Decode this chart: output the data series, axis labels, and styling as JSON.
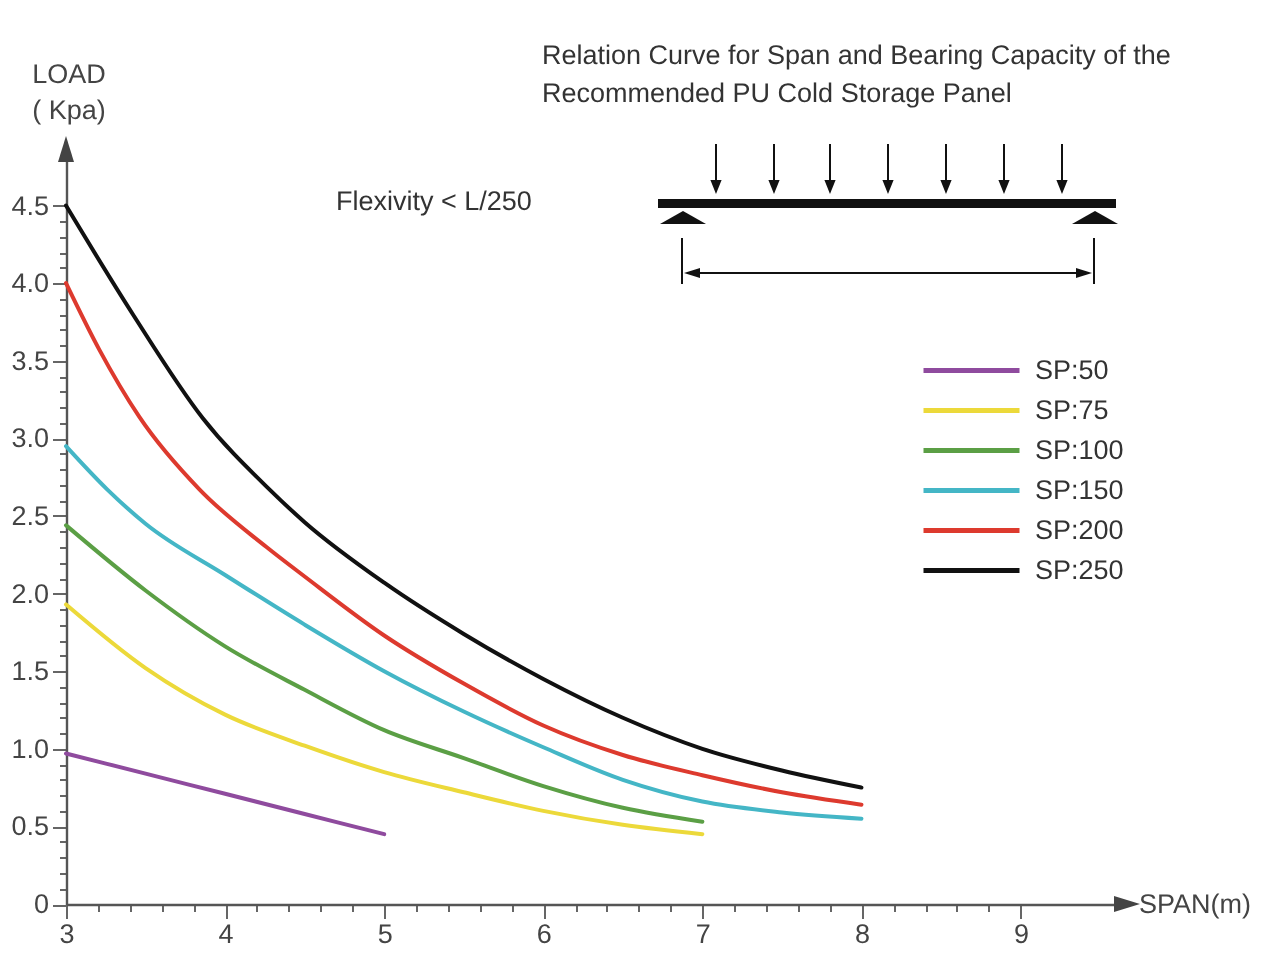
{
  "chart_data": {
    "type": "line",
    "title": "Relation Curve for Span and Bearing Capacity of the Recommended PU Cold Storage Panel",
    "xlabel": "SPAN(m)",
    "ylabel": "LOAD\n( Kpa)",
    "annotations": [
      "Flexivity < L/250"
    ],
    "xlim": [
      3,
      9.6
    ],
    "ylim": [
      0,
      4.8
    ],
    "xticks": [
      3,
      {
        "value": 3.2,
        "label": null
      },
      {
        "value": 3.4,
        "label": null
      },
      {
        "value": 3.6,
        "label": null
      },
      {
        "value": 3.8,
        "label": null
      },
      4,
      {
        "value": 4.2,
        "label": null
      },
      {
        "value": 4.4,
        "label": null
      },
      {
        "value": 4.6,
        "label": null
      },
      {
        "value": 4.8,
        "label": null
      },
      5,
      {
        "value": 5.2,
        "label": null
      },
      {
        "value": 5.4,
        "label": null
      },
      {
        "value": 5.6,
        "label": null
      },
      {
        "value": 5.8,
        "label": null
      },
      6,
      {
        "value": 6.2,
        "label": null
      },
      {
        "value": 6.4,
        "label": null
      },
      {
        "value": 6.6,
        "label": null
      },
      {
        "value": 6.8,
        "label": null
      },
      7,
      {
        "value": 7.2,
        "label": null
      },
      {
        "value": 7.4,
        "label": null
      },
      {
        "value": 7.6,
        "label": null
      },
      {
        "value": 7.8,
        "label": null
      },
      8,
      {
        "value": 8.2,
        "label": null
      },
      {
        "value": 8.4,
        "label": null
      },
      {
        "value": 8.6,
        "label": null
      },
      {
        "value": 8.8,
        "label": null
      },
      9
    ],
    "yticks": [
      0,
      {
        "value": 0.1,
        "label": null
      },
      {
        "value": 0.2,
        "label": null
      },
      {
        "value": 0.3,
        "label": null
      },
      {
        "value": 0.4,
        "label": null
      },
      0.5,
      {
        "value": 0.6,
        "label": null
      },
      {
        "value": 0.7,
        "label": null
      },
      {
        "value": 0.8,
        "label": null
      },
      {
        "value": 0.9,
        "label": null
      },
      {
        "value": 1,
        "label": "1.0"
      },
      {
        "value": 1.1,
        "label": null
      },
      {
        "value": 1.2,
        "label": null
      },
      {
        "value": 1.3,
        "label": null
      },
      {
        "value": 1.4,
        "label": null
      },
      1.5,
      {
        "value": 1.6,
        "label": null
      },
      {
        "value": 1.7,
        "label": null
      },
      {
        "value": 1.8,
        "label": null
      },
      {
        "value": 1.9,
        "label": null
      },
      {
        "value": 2,
        "label": "2.0"
      },
      {
        "value": 2.1,
        "label": null
      },
      {
        "value": 2.2,
        "label": null
      },
      {
        "value": 2.3,
        "label": null
      },
      {
        "value": 2.4,
        "label": null
      },
      2.5,
      {
        "value": 2.6,
        "label": null
      },
      {
        "value": 2.7,
        "label": null
      },
      {
        "value": 2.8,
        "label": null
      },
      {
        "value": 2.9,
        "label": null
      },
      {
        "value": 3,
        "label": "3.0"
      },
      {
        "value": 3.1,
        "label": null
      },
      {
        "value": 3.2,
        "label": null
      },
      {
        "value": 3.3,
        "label": null
      },
      {
        "value": 3.4,
        "label": null
      },
      3.5,
      {
        "value": 3.6,
        "label": null
      },
      {
        "value": 3.7,
        "label": null
      },
      {
        "value": 3.8,
        "label": null
      },
      {
        "value": 3.9,
        "label": null
      },
      {
        "value": 4,
        "label": "4.0"
      },
      {
        "value": 4.1,
        "label": null
      },
      {
        "value": 4.2,
        "label": null
      },
      {
        "value": 4.3,
        "label": null
      },
      {
        "value": 4.4,
        "label": null
      },
      4.5
    ],
    "legend": "right",
    "line_style": "solid",
    "series": [
      {
        "name": "SP:50",
        "color": "#8f4b9e",
        "x": [
          3,
          3.5,
          4,
          4.5,
          5
        ],
        "values": [
          0.97,
          0.84,
          0.71,
          0.58,
          0.45
        ]
      },
      {
        "name": "SP:75",
        "color": "#ecd93a",
        "x": [
          3,
          3.5,
          4,
          4.5,
          5,
          5.5,
          6,
          6.5,
          7
        ],
        "values": [
          1.93,
          1.52,
          1.22,
          1.02,
          0.85,
          0.72,
          0.6,
          0.51,
          0.45
        ]
      },
      {
        "name": "SP:100",
        "color": "#5b9f45",
        "x": [
          3,
          3.5,
          4,
          4.5,
          5,
          5.5,
          6,
          6.5,
          7
        ],
        "values": [
          2.44,
          2.02,
          1.66,
          1.38,
          1.12,
          0.94,
          0.76,
          0.62,
          0.53
        ]
      },
      {
        "name": "SP:150",
        "color": "#44b6c6",
        "x": [
          3,
          3.26,
          3.5,
          4,
          4.5,
          5,
          5.5,
          6,
          6.5,
          7,
          7.5,
          8
        ],
        "values": [
          2.95,
          2.67,
          2.45,
          2.12,
          1.8,
          1.5,
          1.24,
          1.01,
          0.8,
          0.66,
          0.59,
          0.55
        ]
      },
      {
        "name": "SP:200",
        "color": "#dd3a2e",
        "x": [
          3,
          3.21,
          3.46,
          3.84,
          4.26,
          4.5,
          5,
          5.5,
          6,
          6.5,
          7,
          7.5,
          8
        ],
        "values": [
          4.0,
          3.57,
          3.14,
          2.67,
          2.3,
          2.11,
          1.73,
          1.42,
          1.15,
          0.96,
          0.83,
          0.72,
          0.64
        ]
      },
      {
        "name": "SP:250",
        "color": "#111111",
        "x": [
          3,
          3.42,
          3.86,
          4.28,
          4.5,
          5,
          5.5,
          6,
          6.5,
          7,
          7.5,
          8
        ],
        "values": [
          4.5,
          3.8,
          3.13,
          2.67,
          2.46,
          2.07,
          1.74,
          1.45,
          1.2,
          1.0,
          0.86,
          0.75
        ]
      }
    ]
  }
}
